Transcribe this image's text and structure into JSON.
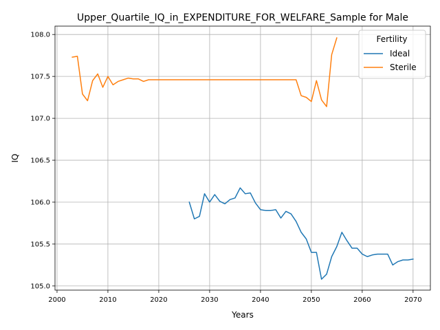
{
  "chart_data": {
    "type": "line",
    "title": "Upper_Quartile_IQ_in_EXPENDITURE_FOR_WELFARE_Sample for Male",
    "xlabel": "Years",
    "ylabel": "IQ",
    "xlim": [
      1999.6,
      2073.4
    ],
    "ylim": [
      104.95,
      108.1
    ],
    "xticks": [
      2000,
      2010,
      2020,
      2030,
      2040,
      2050,
      2060,
      2070
    ],
    "yticks": [
      105.0,
      105.5,
      106.0,
      106.5,
      107.0,
      107.5,
      108.0
    ],
    "ytick_labels": [
      "105.0",
      "105.5",
      "106.0",
      "106.5",
      "107.0",
      "107.5",
      "108.0"
    ],
    "grid": true,
    "legend": {
      "title": "Fertility",
      "position": "top-right"
    },
    "series": [
      {
        "name": "Ideal",
        "color": "#1f77b4",
        "x": [
          2026,
          2027,
          2028,
          2029,
          2030,
          2031,
          2032,
          2033,
          2034,
          2035,
          2036,
          2037,
          2038,
          2039,
          2040,
          2041,
          2042,
          2043,
          2044,
          2045,
          2046,
          2047,
          2048,
          2049,
          2050,
          2051,
          2052,
          2053,
          2054,
          2055,
          2056,
          2057,
          2058,
          2059,
          2060,
          2061,
          2062,
          2063,
          2064,
          2065,
          2066,
          2067,
          2068,
          2069,
          2070
        ],
        "y": [
          106.0,
          105.8,
          105.83,
          106.1,
          106.0,
          106.09,
          106.01,
          105.98,
          106.03,
          106.05,
          106.17,
          106.1,
          106.11,
          105.99,
          105.91,
          105.9,
          105.9,
          105.91,
          105.81,
          105.89,
          105.86,
          105.77,
          105.64,
          105.56,
          105.4,
          105.4,
          105.08,
          105.14,
          105.35,
          105.47,
          105.64,
          105.54,
          105.45,
          105.45,
          105.38,
          105.35,
          105.37,
          105.38,
          105.38,
          105.38,
          105.25,
          105.29,
          105.31,
          105.31,
          105.32
        ]
      },
      {
        "name": "Sterile",
        "color": "#ff7f0e",
        "x": [
          2003,
          2004,
          2005,
          2006,
          2007,
          2008,
          2009,
          2010,
          2011,
          2012,
          2013,
          2014,
          2015,
          2016,
          2017,
          2018,
          2019,
          2020,
          2025,
          2030,
          2035,
          2040,
          2045,
          2047,
          2048,
          2049,
          2050,
          2051,
          2052,
          2053,
          2054,
          2055
        ],
        "y": [
          107.73,
          107.74,
          107.29,
          107.21,
          107.45,
          107.53,
          107.37,
          107.5,
          107.4,
          107.44,
          107.46,
          107.48,
          107.47,
          107.47,
          107.44,
          107.46,
          107.46,
          107.46,
          107.46,
          107.46,
          107.46,
          107.46,
          107.46,
          107.46,
          107.27,
          107.25,
          107.2,
          107.45,
          107.22,
          107.14,
          107.76,
          107.96
        ]
      }
    ]
  }
}
